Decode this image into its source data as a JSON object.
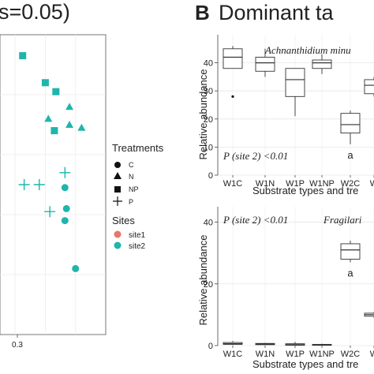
{
  "panel_a": {
    "title_fragment": "s=0.05)",
    "x_tick": "0.3",
    "legend": {
      "treatments_title": "Treatments",
      "treatments": [
        "C",
        "N",
        "NP",
        "P"
      ],
      "sites_title": "Sites",
      "sites": [
        "site1",
        "site2"
      ],
      "site_colors": {
        "site1": "#e8766b",
        "site2": "#1fb5ac"
      }
    }
  },
  "panel_b": {
    "letter": "B",
    "title_fragment": "Dominant ta",
    "x_axis_label": "Substrate types and tre",
    "y_axis_label": "Relative abundance",
    "categories": [
      "W1C",
      "W1N",
      "W1P",
      "W1NP",
      "W2C",
      "W"
    ]
  },
  "chart_data": [
    {
      "type": "scatter",
      "title": "",
      "xlabel": "",
      "ylabel": "",
      "x_tick_labels": [
        "0.3"
      ],
      "grid": true,
      "legend": "right",
      "series": [
        {
          "site": "site2",
          "treatment": "NP",
          "x": 0.265,
          "y": 0.965
        },
        {
          "site": "site2",
          "treatment": "NP",
          "x": 0.28,
          "y": 0.92
        },
        {
          "site": "site2",
          "treatment": "NP",
          "x": 0.287,
          "y": 0.905
        },
        {
          "site": "site2",
          "treatment": "N",
          "x": 0.296,
          "y": 0.88
        },
        {
          "site": "site2",
          "treatment": "N",
          "x": 0.282,
          "y": 0.86
        },
        {
          "site": "site2",
          "treatment": "N",
          "x": 0.296,
          "y": 0.85
        },
        {
          "site": "site2",
          "treatment": "N",
          "x": 0.304,
          "y": 0.845
        },
        {
          "site": "site2",
          "treatment": "NP",
          "x": 0.286,
          "y": 0.84
        },
        {
          "site": "site2",
          "treatment": "P",
          "x": 0.293,
          "y": 0.77
        },
        {
          "site": "site2",
          "treatment": "P",
          "x": 0.266,
          "y": 0.75
        },
        {
          "site": "site2",
          "treatment": "P",
          "x": 0.276,
          "y": 0.75
        },
        {
          "site": "site2",
          "treatment": "C",
          "x": 0.293,
          "y": 0.745
        },
        {
          "site": "site2",
          "treatment": "C",
          "x": 0.294,
          "y": 0.71
        },
        {
          "site": "site2",
          "treatment": "P",
          "x": 0.283,
          "y": 0.705
        },
        {
          "site": "site2",
          "treatment": "C",
          "x": 0.293,
          "y": 0.69
        },
        {
          "site": "site2",
          "treatment": "C",
          "x": 0.3,
          "y": 0.61
        }
      ]
    },
    {
      "type": "box",
      "title": "Achnanthidium minu",
      "annotation": "P (site 2) <0.01",
      "xlabel": "Substrate types and tre",
      "ylabel": "Relative abundance",
      "categories": [
        "W1C",
        "W1N",
        "W1P",
        "W1NP",
        "W2C",
        "W"
      ],
      "ylim": [
        0,
        50
      ],
      "y_ticks": [
        0,
        10,
        20,
        30,
        40
      ],
      "boxes": [
        {
          "min": 38,
          "q1": 38,
          "median": 42,
          "q3": 45,
          "max": 46,
          "outliers": [
            28
          ]
        },
        {
          "min": 35,
          "q1": 37,
          "median": 40,
          "q3": 42,
          "max": 45,
          "outliers": []
        },
        {
          "min": 21,
          "q1": 28,
          "median": 34,
          "q3": 38,
          "max": 38,
          "outliers": []
        },
        {
          "min": 36,
          "q1": 38,
          "median": 40,
          "q3": 41,
          "max": 43,
          "outliers": []
        },
        {
          "min": 11,
          "q1": 15,
          "median": 18,
          "q3": 22,
          "max": 23,
          "outliers": []
        },
        {
          "min": 28,
          "q1": 29,
          "median": 32,
          "q3": 34,
          "max": 35,
          "outliers": []
        }
      ],
      "letters": [
        {
          "category": "W2C",
          "text": "a"
        }
      ]
    },
    {
      "type": "box",
      "title": "Fragilari",
      "annotation": "P (site 2) <0.01",
      "xlabel": "Substrate types and tre",
      "ylabel": "Relative abundance",
      "categories": [
        "W1C",
        "W1N",
        "W1P",
        "W1NP",
        "W2C",
        "W"
      ],
      "ylim": [
        0,
        45
      ],
      "y_ticks": [
        0,
        20,
        40
      ],
      "boxes": [
        {
          "min": 0.2,
          "q1": 0.4,
          "median": 0.6,
          "q3": 1.0,
          "max": 1.5,
          "outliers": []
        },
        {
          "min": 0.2,
          "q1": 0.3,
          "median": 0.5,
          "q3": 0.7,
          "max": 0.9,
          "outliers": []
        },
        {
          "min": 0,
          "q1": 0.1,
          "median": 0.3,
          "q3": 0.6,
          "max": 1.2,
          "outliers": []
        },
        {
          "min": 0,
          "q1": 0.1,
          "median": 0.2,
          "q3": 0.4,
          "max": 0.6,
          "outliers": []
        },
        {
          "min": 27,
          "q1": 28,
          "median": 31,
          "q3": 33,
          "max": 34,
          "outliers": []
        },
        {
          "min": 9,
          "q1": 9.5,
          "median": 10,
          "q3": 10.5,
          "max": 11,
          "outliers": []
        }
      ],
      "letters": [
        {
          "category": "W2C",
          "text": "a"
        }
      ]
    }
  ]
}
